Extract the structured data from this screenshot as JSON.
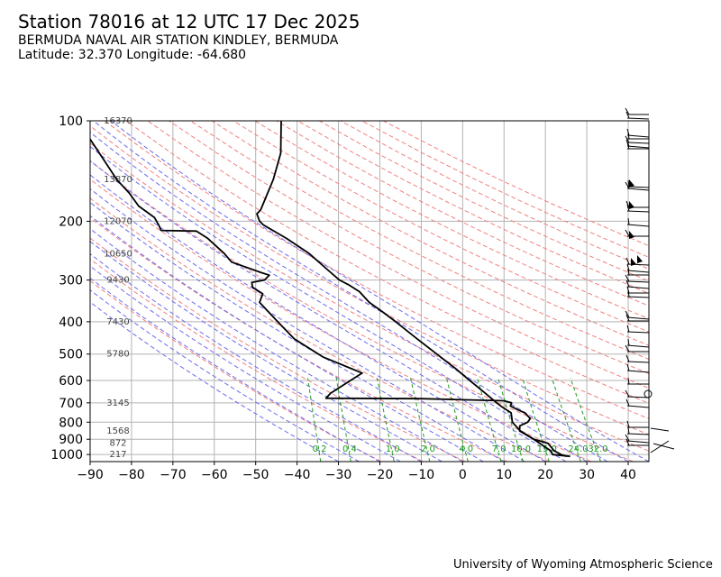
{
  "header": {
    "title": "Station 78016 at 12 UTC 17 Dec 2025",
    "station_name": "BERMUDA NAVAL AIR STATION KINDLEY, BERMUDA",
    "location": "Latitude: 32.370 Longitude: -64.680"
  },
  "footer": {
    "credit": "University of Wyoming Atmospheric Science"
  },
  "chart_data": {
    "type": "line",
    "subtype": "skew-T log-P sounding",
    "xlim": [
      -90,
      45
    ],
    "ylim_hpa": [
      1050,
      100
    ],
    "x_ticks": [
      "−90",
      "−80",
      "−70",
      "−60",
      "−50",
      "−40",
      "−30",
      "−20",
      "−10",
      "0",
      "10",
      "20",
      "30",
      "40"
    ],
    "y_ticks": [
      "100",
      "200",
      "300",
      "400",
      "500",
      "600",
      "700",
      "800",
      "900",
      "1000"
    ],
    "grid": true,
    "height_labels": [
      {
        "p": 100,
        "label": "16370"
      },
      {
        "p": 150,
        "label": "13870"
      },
      {
        "p": 200,
        "label": "12070"
      },
      {
        "p": 250,
        "label": "10650"
      },
      {
        "p": 300,
        "label": "9430"
      },
      {
        "p": 400,
        "label": "7430"
      },
      {
        "p": 500,
        "label": "5780"
      },
      {
        "p": 700,
        "label": "3145"
      },
      {
        "p": 850,
        "label": "1568"
      },
      {
        "p": 925,
        "label": "872"
      },
      {
        "p": 1000,
        "label": "217"
      }
    ],
    "mixing_ratio_labels": [
      "0.2",
      "0.4",
      "1.0",
      "2.0",
      "4.0",
      "7.0",
      "10.0",
      "15.0",
      "24.0",
      "32.0"
    ],
    "temperature": [
      {
        "p": 1013,
        "t": 25.0
      },
      {
        "p": 1000,
        "t": 23.6
      },
      {
        "p": 975,
        "t": 21.8
      },
      {
        "p": 925,
        "t": 20.0
      },
      {
        "p": 900,
        "t": 16.5
      },
      {
        "p": 850,
        "t": 13.0
      },
      {
        "p": 800,
        "t": 10.8
      },
      {
        "p": 750,
        "t": 10.2
      },
      {
        "p": 720,
        "t": 7.8
      },
      {
        "p": 700,
        "t": 6.4
      },
      {
        "p": 650,
        "t": 3.0
      },
      {
        "p": 600,
        "t": -0.8
      },
      {
        "p": 550,
        "t": -4.8
      },
      {
        "p": 500,
        "t": -9.6
      },
      {
        "p": 450,
        "t": -14.8
      },
      {
        "p": 400,
        "t": -20.5
      },
      {
        "p": 375,
        "t": -23.8
      },
      {
        "p": 350,
        "t": -27.5
      },
      {
        "p": 325,
        "t": -30.2
      },
      {
        "p": 310,
        "t": -33.0
      },
      {
        "p": 300,
        "t": -35.4
      },
      {
        "p": 280,
        "t": -38.5
      },
      {
        "p": 250,
        "t": -43.5
      },
      {
        "p": 225,
        "t": -49.5
      },
      {
        "p": 205,
        "t": -55.5
      },
      {
        "p": 200,
        "t": -56.5
      },
      {
        "p": 190,
        "t": -57.4
      },
      {
        "p": 185,
        "t": -56.6
      },
      {
        "p": 150,
        "t": -54.5
      },
      {
        "p": 125,
        "t": -53.5
      },
      {
        "p": 100,
        "t": -54.4
      }
    ],
    "dewpoint": [
      {
        "p": 1013,
        "t": 25.8
      },
      {
        "p": 1000,
        "t": 21.5
      },
      {
        "p": 975,
        "t": 21.0
      },
      {
        "p": 925,
        "t": 18.0
      },
      {
        "p": 900,
        "t": 16.5
      },
      {
        "p": 850,
        "t": 12.8
      },
      {
        "p": 820,
        "t": 12.7
      },
      {
        "p": 800,
        "t": 14.5
      },
      {
        "p": 780,
        "t": 15.0
      },
      {
        "p": 750,
        "t": 13.5
      },
      {
        "p": 735,
        "t": 11.8
      },
      {
        "p": 715,
        "t": 9.8
      },
      {
        "p": 700,
        "t": 10.0
      },
      {
        "p": 690,
        "t": 8.0
      },
      {
        "p": 680,
        "t": -12.0
      },
      {
        "p": 678,
        "t": -35.0
      },
      {
        "p": 655,
        "t": -34.0
      },
      {
        "p": 570,
        "t": -27.0
      },
      {
        "p": 510,
        "t": -37.0
      },
      {
        "p": 450,
        "t": -44.5
      },
      {
        "p": 400,
        "t": -49.0
      },
      {
        "p": 350,
        "t": -54.0
      },
      {
        "p": 330,
        "t": -53.5
      },
      {
        "p": 315,
        "t": -56.2
      },
      {
        "p": 305,
        "t": -56.5
      },
      {
        "p": 300,
        "t": -53.5
      },
      {
        "p": 290,
        "t": -52.5
      },
      {
        "p": 285,
        "t": -54.5
      },
      {
        "p": 265,
        "t": -62.0
      },
      {
        "p": 250,
        "t": -64.0
      },
      {
        "p": 225,
        "t": -68.5
      },
      {
        "p": 214,
        "t": -71.5
      },
      {
        "p": 213,
        "t": -80.0
      },
      {
        "p": 205,
        "t": -80.8
      },
      {
        "p": 195,
        "t": -82.0
      },
      {
        "p": 180,
        "t": -86.2
      },
      {
        "p": 165,
        "t": -88.8
      },
      {
        "p": 150,
        "t": -92.3
      },
      {
        "p": 100,
        "t": -103.5
      }
    ]
  }
}
